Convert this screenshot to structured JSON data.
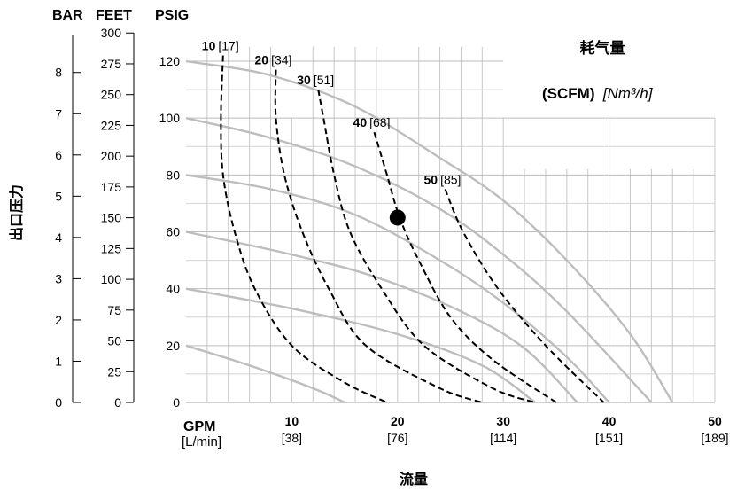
{
  "chart_data": {
    "type": "line",
    "title": "耗气量",
    "air_units_label": "(SCFM)",
    "air_units_metric_label": "[Nm³/h]",
    "xlabel": "流量",
    "x_unit_label": "GPM",
    "x_unit_metric_label": "[L/min]",
    "ylabel": "出口压力",
    "axis_headers": {
      "bar": "BAR",
      "feet": "FEET",
      "psig": "PSIG"
    },
    "xlim": [
      0,
      50
    ],
    "ylim": [
      0,
      125
    ],
    "x_ticks": [
      {
        "value": 10,
        "label": "10",
        "metric": "[38]"
      },
      {
        "value": 20,
        "label": "20",
        "metric": "[76]"
      },
      {
        "value": 30,
        "label": "30",
        "metric": "[114]"
      },
      {
        "value": 40,
        "label": "40",
        "metric": "[151]"
      },
      {
        "value": 50,
        "label": "50",
        "metric": "[189]"
      }
    ],
    "psig_ticks": [
      0,
      20,
      40,
      60,
      80,
      100,
      120
    ],
    "feet_ticks": [
      0,
      25,
      50,
      75,
      100,
      125,
      150,
      175,
      200,
      225,
      250,
      275,
      300
    ],
    "bar_ticks": [
      0,
      1,
      2,
      3,
      4,
      5,
      6,
      7,
      8
    ],
    "grid": true,
    "inlet_pressure_curves": [
      {
        "points": [
          [
            0,
            120
          ],
          [
            8,
            115
          ],
          [
            16,
            104
          ],
          [
            24,
            86
          ],
          [
            30,
            71
          ],
          [
            36,
            50
          ],
          [
            42,
            24
          ],
          [
            46,
            0
          ]
        ]
      },
      {
        "points": [
          [
            0,
            100
          ],
          [
            8,
            93
          ],
          [
            16,
            83
          ],
          [
            24,
            68
          ],
          [
            30,
            52
          ],
          [
            36,
            32
          ],
          [
            44,
            0
          ]
        ]
      },
      {
        "points": [
          [
            0,
            80
          ],
          [
            8,
            75
          ],
          [
            16,
            66
          ],
          [
            24,
            50
          ],
          [
            30,
            35
          ],
          [
            36,
            16
          ],
          [
            40,
            0
          ]
        ]
      },
      {
        "points": [
          [
            0,
            60
          ],
          [
            10,
            52
          ],
          [
            18,
            44
          ],
          [
            26,
            32
          ],
          [
            32,
            19
          ],
          [
            37,
            0
          ]
        ]
      },
      {
        "points": [
          [
            0,
            40
          ],
          [
            10,
            33
          ],
          [
            20,
            24
          ],
          [
            28,
            13
          ],
          [
            33,
            0
          ]
        ]
      },
      {
        "points": [
          [
            0,
            20
          ],
          [
            6,
            13
          ],
          [
            12,
            5
          ],
          [
            15,
            0
          ]
        ]
      }
    ],
    "air_consumption_curves": [
      {
        "label": "10",
        "metric": "[17]",
        "points": [
          [
            3.5,
            122
          ],
          [
            3.3,
            100
          ],
          [
            3.5,
            80
          ],
          [
            4.6,
            60
          ],
          [
            6.5,
            40
          ],
          [
            10,
            20
          ],
          [
            15,
            7
          ],
          [
            19,
            0
          ]
        ]
      },
      {
        "label": "20",
        "metric": "[34]",
        "points": [
          [
            8.5,
            117
          ],
          [
            8.5,
            100
          ],
          [
            9.3,
            80
          ],
          [
            11,
            60
          ],
          [
            13.5,
            40
          ],
          [
            17,
            20
          ],
          [
            24,
            5
          ],
          [
            28,
            0
          ]
        ]
      },
      {
        "label": "30",
        "metric": "[51]",
        "points": [
          [
            12.5,
            110
          ],
          [
            13,
            100
          ],
          [
            14,
            80
          ],
          [
            15.5,
            60
          ],
          [
            18.5,
            40
          ],
          [
            22.5,
            20
          ],
          [
            29,
            5
          ],
          [
            33,
            0
          ]
        ]
      },
      {
        "label": "40",
        "metric": "[68]",
        "points": [
          [
            17.8,
            95
          ],
          [
            19,
            80
          ],
          [
            20.2,
            65
          ],
          [
            22,
            50
          ],
          [
            25,
            30
          ],
          [
            29,
            15
          ],
          [
            35,
            0
          ]
        ]
      },
      {
        "label": "50",
        "metric": "[85]",
        "points": [
          [
            24.5,
            75
          ],
          [
            26.2,
            60
          ],
          [
            29.5,
            40
          ],
          [
            34,
            20
          ],
          [
            39.5,
            0
          ]
        ]
      }
    ],
    "operating_point": {
      "x": 20,
      "y": 65
    }
  }
}
